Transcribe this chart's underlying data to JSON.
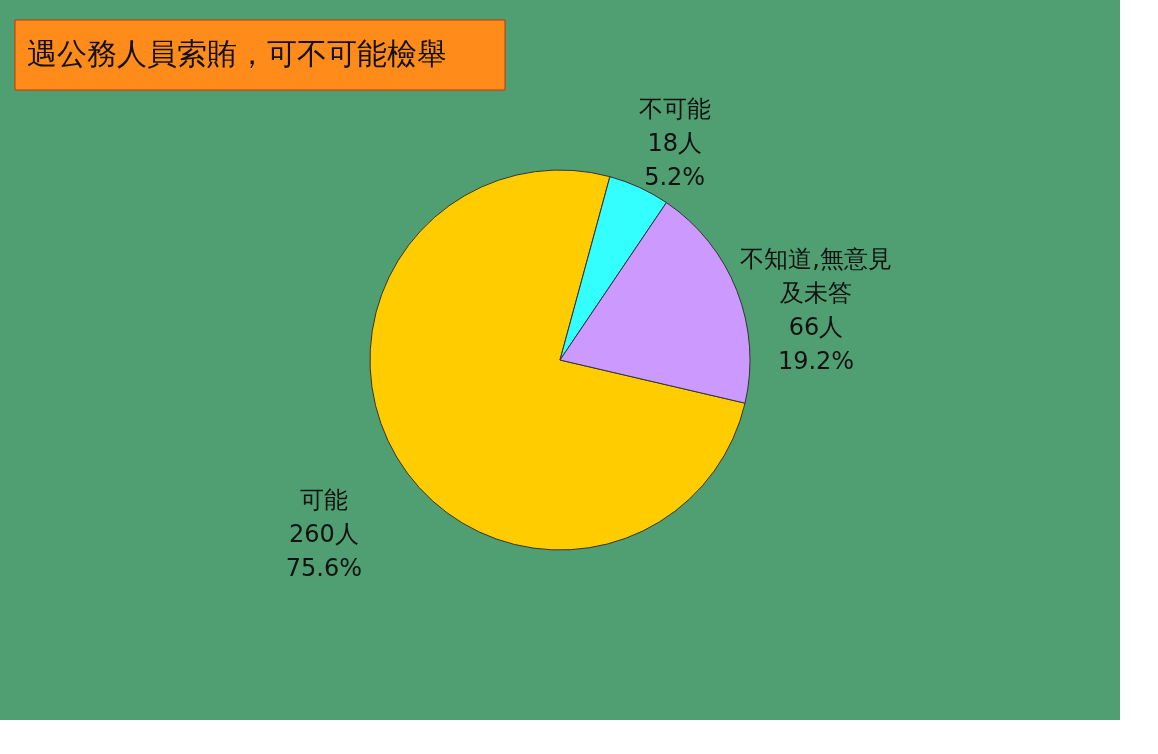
{
  "chart_data": {
    "type": "pie",
    "title": "遇公務人員索賄，可不可能檢舉",
    "categories": [
      "可能",
      "不可能",
      "不知道,無意見及未答"
    ],
    "values": [
      260,
      18,
      66
    ],
    "value_labels": [
      "260人\n75.6%",
      "18人\n5.2%",
      "66人\n19.2%"
    ],
    "colors": [
      "#ffcc00",
      "#33ffff",
      "#cc99ff"
    ],
    "legend": false
  }
}
